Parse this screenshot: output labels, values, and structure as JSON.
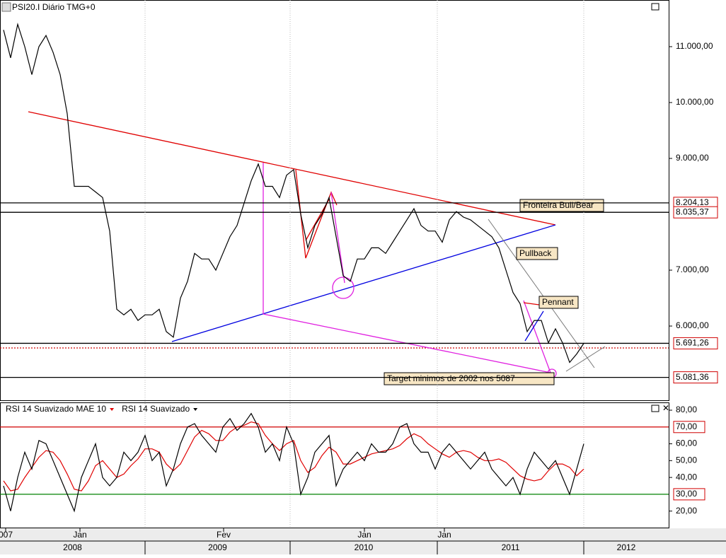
{
  "chart_data": [
    {
      "type": "line",
      "title": "PSI20.I Diário TMG+0",
      "color": "#000000",
      "values": [
        11300,
        10800,
        11400,
        11000,
        10500,
        11000,
        11200,
        10900,
        10500,
        9800,
        8500,
        8500,
        8500,
        8400,
        8300,
        7700,
        6300,
        6200,
        6300,
        6100,
        6200,
        6200,
        6300,
        5900,
        5800,
        6500,
        6800,
        7300,
        7200,
        7200,
        7000,
        7300,
        7600,
        7800,
        8200,
        8600,
        8900,
        8500,
        8500,
        8300,
        8700,
        8800,
        8000,
        7400,
        7800,
        8000,
        8300,
        7600,
        6900,
        6800,
        7200,
        7200,
        7400,
        7400,
        7300,
        7500,
        7700,
        7900,
        8100,
        7800,
        7700,
        7700,
        7500,
        7900,
        8050,
        7950,
        7900,
        7800,
        7700,
        7600,
        7400,
        7000,
        6600,
        6400,
        5900,
        6100,
        6100,
        5700,
        5950,
        5700,
        5350,
        5500,
        5690
      ],
      "xlim": [
        -0.5,
        94
      ],
      "ylim": [
        4684,
        11835
      ],
      "yticks": [
        {
          "value": 6000,
          "label": "6.000,00"
        },
        {
          "value": 7000,
          "label": "7.000,00"
        },
        {
          "value": 9000,
          "label": "9.000,00"
        },
        {
          "value": 10000,
          "label": "10.000,00"
        },
        {
          "value": 11000,
          "label": "11.000,00"
        }
      ],
      "price_levels": [
        {
          "value": 8204.13,
          "label": "8.204,13"
        },
        {
          "value": 8035.37,
          "label": "8.035,37"
        },
        {
          "value": 5691.26,
          "label": "5.691,26"
        },
        {
          "value": 5081.36,
          "label": "5.081,36"
        }
      ],
      "annotations": [
        "Fronteira Bull/Bear",
        "Pullback",
        "Pennant",
        "Target minimos de 2002 nos 5087"
      ],
      "xticks": [
        {
          "value": 0.3,
          "label": "007"
        },
        {
          "value": 10.8,
          "label": "Jan"
        },
        {
          "value": 31.1,
          "label": "Fev"
        },
        {
          "value": 51,
          "label": "Jan"
        },
        {
          "value": 62.3,
          "label": "Jan"
        }
      ],
      "year_ticks": [
        {
          "value": -0.5,
          "label": "2008"
        },
        {
          "value": 20,
          "label": "2009"
        },
        {
          "value": 40.5,
          "label": "2010"
        },
        {
          "value": 61.3,
          "label": "2011"
        },
        {
          "value": 82,
          "label": "2012"
        }
      ]
    },
    {
      "type": "line",
      "xlim": [
        -0.5,
        94
      ],
      "ylim": [
        10.6,
        84.2
      ],
      "yticks": [
        {
          "value": 20,
          "label": "20,00"
        },
        {
          "value": 40,
          "label": "40,00"
        },
        {
          "value": 50,
          "label": "50,00"
        },
        {
          "value": 60,
          "label": "60,00"
        },
        {
          "value": 80,
          "label": "80,00"
        }
      ],
      "ref_lines": [
        {
          "value": 70,
          "label": "70,00",
          "color": "#d00000"
        },
        {
          "value": 30,
          "label": "30,00",
          "color": "#008000"
        }
      ],
      "series": [
        {
          "name": "RSI 14 Suavizado MAE 10",
          "color": "#e00000",
          "values": [
            38,
            32,
            33,
            40,
            46,
            52,
            56,
            55,
            50,
            42,
            33,
            32,
            38,
            47,
            50,
            45,
            40,
            42,
            47,
            51,
            57,
            57,
            55,
            48,
            44,
            48,
            56,
            64,
            68,
            66,
            62,
            62,
            67,
            70,
            71,
            73,
            72,
            65,
            60,
            56,
            60,
            62,
            50,
            43,
            46,
            53,
            58,
            55,
            48,
            48,
            50,
            52,
            54,
            55,
            56,
            57,
            59,
            63,
            66,
            64,
            60,
            57,
            54,
            52,
            55,
            56,
            55,
            52,
            50,
            50,
            51,
            49,
            45,
            41,
            39,
            38,
            39,
            44,
            48,
            48,
            46,
            41,
            45
          ]
        },
        {
          "name": "RSI 14 Suavizado",
          "color": "#000000",
          "values": [
            35,
            20,
            40,
            55,
            45,
            62,
            60,
            50,
            40,
            30,
            20,
            40,
            50,
            60,
            40,
            35,
            40,
            55,
            50,
            55,
            65,
            50,
            55,
            35,
            45,
            60,
            70,
            72,
            65,
            60,
            55,
            70,
            75,
            68,
            72,
            78,
            70,
            55,
            60,
            50,
            70,
            60,
            30,
            40,
            55,
            60,
            65,
            35,
            45,
            50,
            55,
            50,
            60,
            55,
            55,
            60,
            70,
            72,
            60,
            55,
            55,
            45,
            55,
            60,
            55,
            50,
            45,
            50,
            55,
            45,
            40,
            35,
            40,
            30,
            45,
            55,
            50,
            45,
            50,
            40,
            30,
            45,
            60
          ]
        }
      ]
    }
  ]
}
